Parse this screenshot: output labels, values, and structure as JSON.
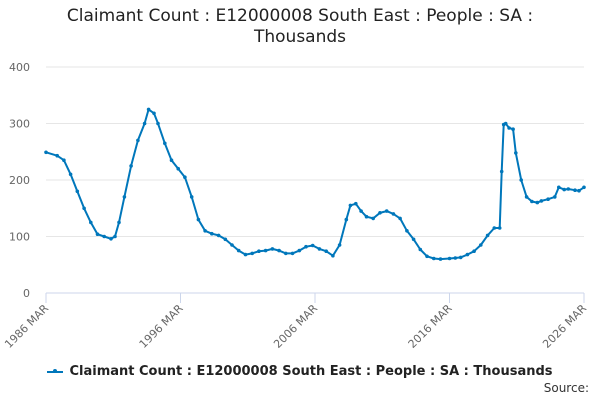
{
  "chart_data": {
    "type": "line",
    "title": "Claimant Count : E12000008 South East : People : SA : Thousands",
    "xlabel": "",
    "ylabel": "",
    "x_ticks": [
      "1986 MAR",
      "1996 MAR",
      "2006 MAR",
      "2016 MAR",
      "2026 MAR"
    ],
    "x_range": [
      1986.17,
      2026.17
    ],
    "ylim": [
      0,
      400
    ],
    "y_ticks": [
      0,
      100,
      200,
      300,
      400
    ],
    "grid": "horizontal",
    "legend_position": "bottom",
    "series": [
      {
        "name": "Claimant Count : E12000008 South East : People : SA : Thousands",
        "color": "#0077bb",
        "points": [
          [
            1986.17,
            249
          ],
          [
            1987.0,
            243
          ],
          [
            1987.5,
            235
          ],
          [
            1988.0,
            210
          ],
          [
            1988.5,
            180
          ],
          [
            1989.0,
            150
          ],
          [
            1989.5,
            125
          ],
          [
            1990.0,
            104
          ],
          [
            1990.5,
            100
          ],
          [
            1991.0,
            96
          ],
          [
            1991.3,
            100
          ],
          [
            1991.6,
            125
          ],
          [
            1992.0,
            170
          ],
          [
            1992.5,
            225
          ],
          [
            1993.0,
            270
          ],
          [
            1993.5,
            300
          ],
          [
            1993.8,
            325
          ],
          [
            1994.2,
            318
          ],
          [
            1994.5,
            300
          ],
          [
            1995.0,
            265
          ],
          [
            1995.5,
            235
          ],
          [
            1996.0,
            220
          ],
          [
            1996.5,
            205
          ],
          [
            1997.0,
            170
          ],
          [
            1997.5,
            130
          ],
          [
            1998.0,
            110
          ],
          [
            1998.5,
            105
          ],
          [
            1999.0,
            102
          ],
          [
            1999.5,
            95
          ],
          [
            2000.0,
            85
          ],
          [
            2000.5,
            75
          ],
          [
            2001.0,
            68
          ],
          [
            2001.5,
            70
          ],
          [
            2002.0,
            74
          ],
          [
            2002.5,
            75
          ],
          [
            2003.0,
            78
          ],
          [
            2003.5,
            75
          ],
          [
            2004.0,
            70
          ],
          [
            2004.5,
            70
          ],
          [
            2005.0,
            75
          ],
          [
            2005.5,
            82
          ],
          [
            2006.0,
            84
          ],
          [
            2006.5,
            78
          ],
          [
            2007.0,
            74
          ],
          [
            2007.5,
            66
          ],
          [
            2008.0,
            85
          ],
          [
            2008.5,
            130
          ],
          [
            2008.8,
            155
          ],
          [
            2009.2,
            158
          ],
          [
            2009.6,
            145
          ],
          [
            2010.0,
            135
          ],
          [
            2010.5,
            132
          ],
          [
            2011.0,
            142
          ],
          [
            2011.5,
            145
          ],
          [
            2012.0,
            140
          ],
          [
            2012.5,
            132
          ],
          [
            2013.0,
            110
          ],
          [
            2013.5,
            95
          ],
          [
            2014.0,
            77
          ],
          [
            2014.5,
            65
          ],
          [
            2015.0,
            61
          ],
          [
            2015.5,
            60
          ],
          [
            2016.17,
            61
          ],
          [
            2016.6,
            62
          ],
          [
            2017.0,
            63
          ],
          [
            2017.5,
            68
          ],
          [
            2018.0,
            74
          ],
          [
            2018.5,
            85
          ],
          [
            2019.0,
            102
          ],
          [
            2019.5,
            115
          ],
          [
            2019.9,
            115
          ],
          [
            2020.05,
            215
          ],
          [
            2020.2,
            298
          ],
          [
            2020.35,
            300
          ],
          [
            2020.6,
            292
          ],
          [
            2020.9,
            290
          ],
          [
            2021.1,
            248
          ],
          [
            2021.5,
            200
          ],
          [
            2021.9,
            170
          ],
          [
            2022.3,
            162
          ],
          [
            2022.7,
            160
          ],
          [
            2023.0,
            163
          ],
          [
            2023.5,
            166
          ],
          [
            2024.0,
            170
          ],
          [
            2024.3,
            187
          ],
          [
            2024.7,
            183
          ],
          [
            2025.0,
            184
          ],
          [
            2025.5,
            182
          ],
          [
            2025.8,
            181
          ],
          [
            2026.17,
            187
          ]
        ]
      }
    ],
    "source_label": "Source:"
  }
}
